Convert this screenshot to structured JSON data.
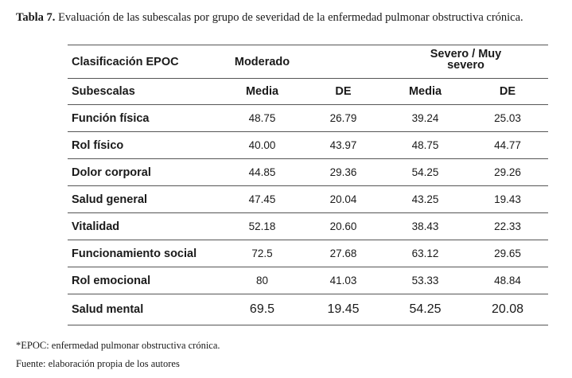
{
  "caption": {
    "label": "Tabla 7.",
    "text": "Evaluación de las subescalas por grupo de severidad de la enfermedad pulmonar obstructiva crónica."
  },
  "table": {
    "header_group": {
      "classification": "Clasificación  EPOC",
      "group1": "Moderado",
      "group2": "Severo / Muy severo"
    },
    "header_columns": [
      "Subescalas",
      "Media",
      "DE",
      "Media",
      "DE"
    ],
    "rows": [
      {
        "label": "Función física",
        "values": [
          "48.75",
          "26.79",
          "39.24",
          "25.03"
        ]
      },
      {
        "label": "Rol físico",
        "values": [
          "40.00",
          "43.97",
          "48.75",
          "44.77"
        ]
      },
      {
        "label": "Dolor corporal",
        "values": [
          "44.85",
          "29.36",
          "54.25",
          "29.26"
        ]
      },
      {
        "label": "Salud general",
        "values": [
          "47.45",
          "20.04",
          "43.25",
          "19.43"
        ]
      },
      {
        "label": "Vitalidad",
        "values": [
          "52.18",
          "20.60",
          "38.43",
          "22.33"
        ]
      },
      {
        "label": "Funcionamiento social",
        "values": [
          "72.5",
          "27.68",
          "63.12",
          "29.65"
        ]
      },
      {
        "label": "Rol emocional",
        "values": [
          "80",
          "41.03",
          "53.33",
          "48.84"
        ]
      },
      {
        "label": "Salud mental",
        "values": [
          "69.5",
          "19.45",
          "54.25",
          "20.08"
        ]
      }
    ]
  },
  "notes": {
    "abbreviation": "*EPOC: enfermedad pulmonar obstructiva crónica.",
    "source": "Fuente: elaboración propia de los autores"
  }
}
